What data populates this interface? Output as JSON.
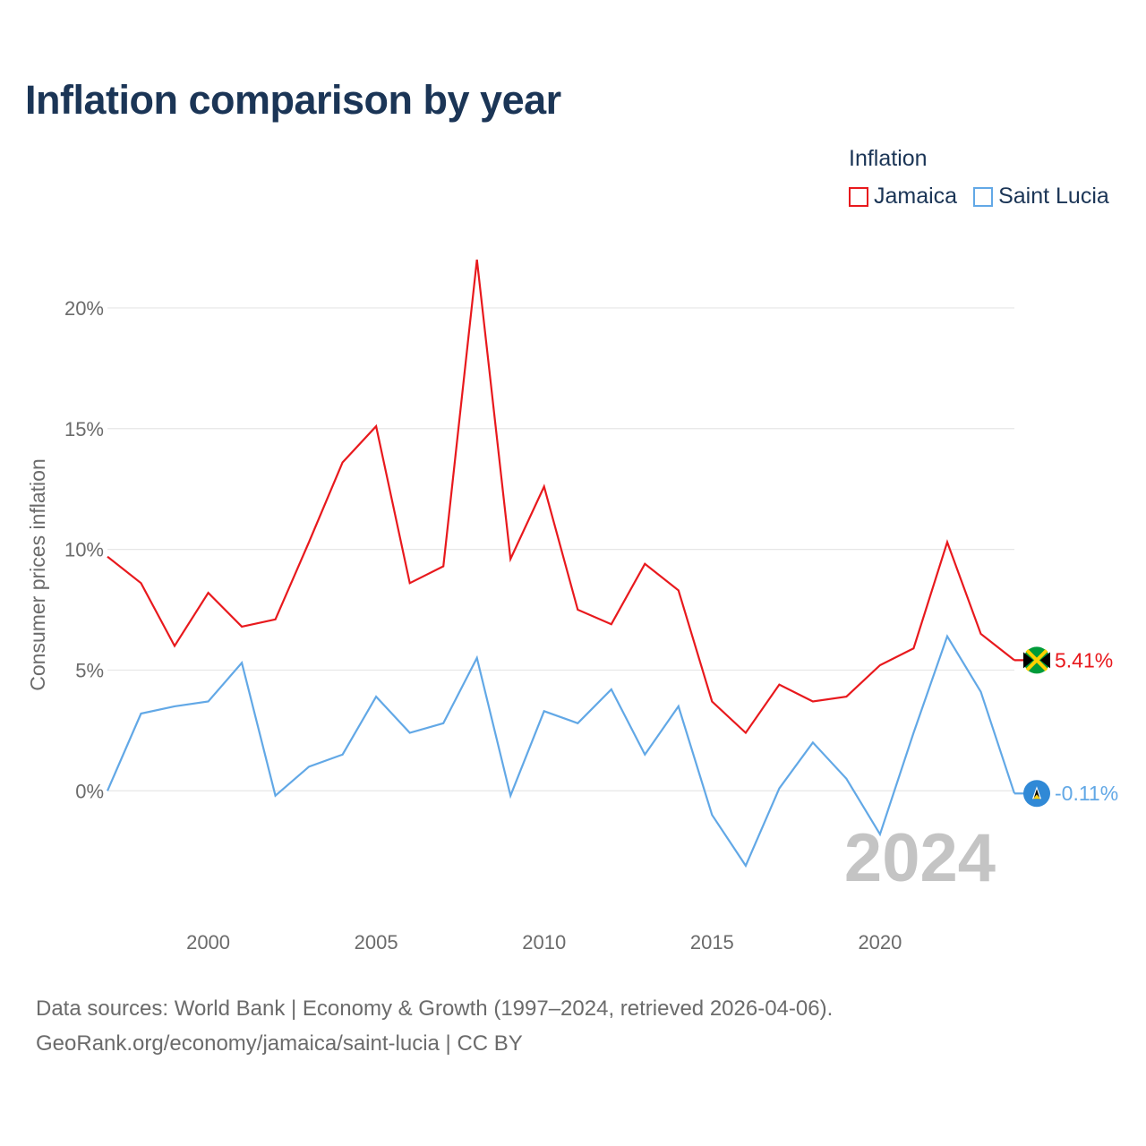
{
  "title": "Inflation comparison by year",
  "legend": {
    "title": "Inflation",
    "items": [
      {
        "label": "Jamaica",
        "color": "#e8191d"
      },
      {
        "label": "Saint Lucia",
        "color": "#62a8e6"
      }
    ]
  },
  "footer": {
    "line1": "Data sources: World Bank | Economy & Growth (1997–2024, retrieved 2026-04-06).",
    "line2": "GeoRank.org/economy/jamaica/saint-lucia | CC BY"
  },
  "chart_data": {
    "type": "line",
    "ylabel": "Consumer prices inflation",
    "xlabel": "",
    "xlim": [
      1997,
      2024
    ],
    "ylim": [
      -4.7,
      22
    ],
    "x_ticks": [
      2000,
      2005,
      2010,
      2015,
      2020
    ],
    "y_ticks": [
      0,
      5,
      10,
      15,
      20
    ],
    "y_tick_labels": [
      "0%",
      "5%",
      "10%",
      "15%",
      "20%"
    ],
    "year_marker": "2024",
    "x": [
      1997,
      1998,
      1999,
      2000,
      2001,
      2002,
      2003,
      2004,
      2005,
      2006,
      2007,
      2008,
      2009,
      2010,
      2011,
      2012,
      2013,
      2014,
      2015,
      2016,
      2017,
      2018,
      2019,
      2020,
      2021,
      2022,
      2023,
      2024
    ],
    "series": [
      {
        "name": "Jamaica",
        "color": "#e8191d",
        "end_label": "5.41%",
        "values": [
          9.7,
          8.6,
          6.0,
          8.2,
          6.8,
          7.1,
          10.3,
          13.6,
          15.1,
          8.6,
          9.3,
          22.0,
          9.6,
          12.6,
          7.5,
          6.9,
          9.4,
          8.3,
          3.7,
          2.4,
          4.4,
          3.7,
          3.9,
          5.2,
          5.9,
          10.3,
          6.5,
          5.41
        ]
      },
      {
        "name": "Saint Lucia",
        "color": "#62a8e6",
        "end_label": "-0.11%",
        "values": [
          0.0,
          3.2,
          3.5,
          3.7,
          5.3,
          -0.2,
          1.0,
          1.5,
          3.9,
          2.4,
          2.8,
          5.5,
          -0.2,
          3.3,
          2.8,
          4.2,
          1.5,
          3.5,
          -1.0,
          -3.1,
          0.1,
          2.0,
          0.5,
          -1.8,
          2.4,
          6.4,
          4.1,
          -0.11
        ]
      }
    ]
  }
}
